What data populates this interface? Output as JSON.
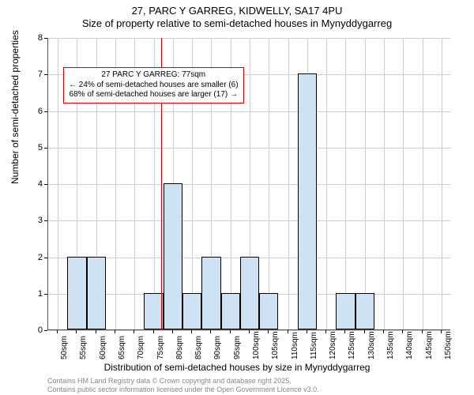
{
  "title": {
    "main": "27, PARC Y GARREG, KIDWELLY, SA17 4PU",
    "sub": "Size of property relative to semi-detached houses in Mynyddygarreg"
  },
  "chart": {
    "type": "histogram",
    "x_categories": [
      "50sqm",
      "55sqm",
      "60sqm",
      "65sqm",
      "70sqm",
      "75sqm",
      "80sqm",
      "85sqm",
      "90sqm",
      "95sqm",
      "100sqm",
      "105sqm",
      "110sqm",
      "115sqm",
      "120sqm",
      "125sqm",
      "130sqm",
      "135sqm",
      "140sqm",
      "145sqm",
      "150sqm"
    ],
    "values": [
      0,
      2,
      2,
      0,
      0,
      1,
      4,
      1,
      2,
      1,
      2,
      1,
      0,
      7,
      0,
      1,
      1,
      0,
      0,
      0,
      0
    ],
    "bar_fill": "#cfe2f3",
    "bar_stroke": "#000000",
    "bar_width_ratio": 1.0,
    "ylim": [
      0,
      8
    ],
    "ytick_step": 1,
    "grid_color": "#cccccc",
    "background_color": "#ffffff",
    "y_axis_label": "Number of semi-detached properties",
    "x_axis_label": "Distribution of semi-detached houses by size in Mynyddygarreg",
    "reference_line": {
      "x_value": 77,
      "color": "#cc0000",
      "width": 1
    },
    "annotation": {
      "lines": [
        "27 PARC Y GARREG: 77sqm",
        "← 24% of semi-detached houses are smaller (6)",
        "68% of semi-detached houses are larger (17) →"
      ],
      "border_color": "#cc0000",
      "fontsize": 10
    },
    "tick_fontsize": 11,
    "label_fontsize": 12
  },
  "footer": {
    "line1": "Contains HM Land Registry data © Crown copyright and database right 2025.",
    "line2": "Contains public sector information licensed under the Open Government Licence v3.0."
  }
}
